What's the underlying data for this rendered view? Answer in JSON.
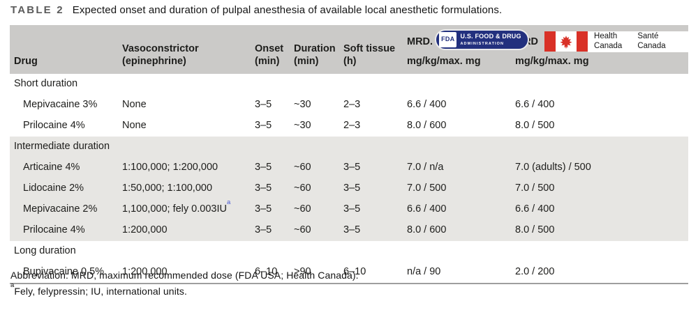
{
  "title": {
    "label": "TABLE 2",
    "text": "Expected onset and duration of pulpal anesthesia of available local anesthetic formulations."
  },
  "colors": {
    "header-bg": "#cbcac8",
    "band-bg": "#e7e6e3",
    "fda-navy": "#22307e",
    "canada-red": "#d93127",
    "sup-blue": "#4a5bd6",
    "title-gray": "#5b5b5b",
    "border-gray": "#9e9e9e",
    "text": "#1d1d1b"
  },
  "header": {
    "drug": "Drug",
    "vasoconstrictor": [
      "Vasoconstrictor",
      "(epinephrine)"
    ],
    "onset": [
      "Onset",
      "(min)"
    ],
    "duration": [
      "Duration",
      "(min)"
    ],
    "soft_tissue": [
      "Soft tissue",
      "(h)"
    ],
    "mrd_fda": {
      "label": "MRD.",
      "sub": "mg/kg/max. mg"
    },
    "mrd_canada": {
      "label": "MRD",
      "sub": "mg/kg/max. mg",
      "en": [
        "Health",
        "Canada"
      ],
      "fr": [
        "Santé",
        "Canada"
      ]
    }
  },
  "fda_logo": {
    "monogram": "FDA",
    "line1": "U.S. FOOD & DRUG",
    "line2": "ADMINISTRATION"
  },
  "sections": [
    {
      "label": "Short duration",
      "shaded": false,
      "rows": [
        {
          "drug": "Mepivacaine 3%",
          "vasoconstrictor": "None",
          "onset": "3–5",
          "duration": "~30",
          "soft_tissue": "2–3",
          "mrd_fda": "6.6 / 400",
          "mrd_canada": "6.6 / 400"
        },
        {
          "drug": "Prilocaine 4%",
          "vasoconstrictor": "None",
          "onset": "3–5",
          "duration": "~30",
          "soft_tissue": "2–3",
          "mrd_fda": "8.0 / 600",
          "mrd_canada": "8.0 / 500"
        }
      ]
    },
    {
      "label": "Intermediate duration",
      "shaded": true,
      "rows": [
        {
          "drug": "Articaine 4%",
          "vasoconstrictor": "1:100,000; 1:200,000",
          "onset": "3–5",
          "duration": "~60",
          "soft_tissue": "3–5",
          "mrd_fda": "7.0 / n/a",
          "mrd_canada": "7.0 (adults) / 500"
        },
        {
          "drug": "Lidocaine 2%",
          "vasoconstrictor": "1:50,000; 1:100,000",
          "onset": "3–5",
          "duration": "~60",
          "soft_tissue": "3–5",
          "mrd_fda": "7.0 / 500",
          "mrd_canada": "7.0 / 500"
        },
        {
          "drug": "Mepivacaine 2%",
          "vasoconstrictor": "1,100,000; fely 0.003IU",
          "vasoconstrictor_sup": "a",
          "onset": "3–5",
          "duration": "~60",
          "soft_tissue": "3–5",
          "mrd_fda": "6.6 / 400",
          "mrd_canada": "6.6 / 400"
        },
        {
          "drug": "Prilocaine 4%",
          "vasoconstrictor": "1:200,000",
          "onset": "3–5",
          "duration": "~60",
          "soft_tissue": "3–5",
          "mrd_fda": "8.0 / 600",
          "mrd_canada": "8.0 / 500"
        }
      ]
    },
    {
      "label": "Long duration",
      "shaded": false,
      "rows": [
        {
          "drug": "Bupivacaine 0.5%",
          "vasoconstrictor": "1:200,000",
          "onset": "6–10",
          "duration": ">90",
          "soft_tissue": "6–10",
          "mrd_fda": "n/a / 90",
          "mrd_canada": "2.0 / 200"
        }
      ]
    }
  ],
  "footnotes": {
    "note1": "Abbreviation: MRD, maximum recommended dose (FDA USA; Health Canada).",
    "note2_sup": "a",
    "note2": "Fely, felypressin; IU, international units."
  }
}
